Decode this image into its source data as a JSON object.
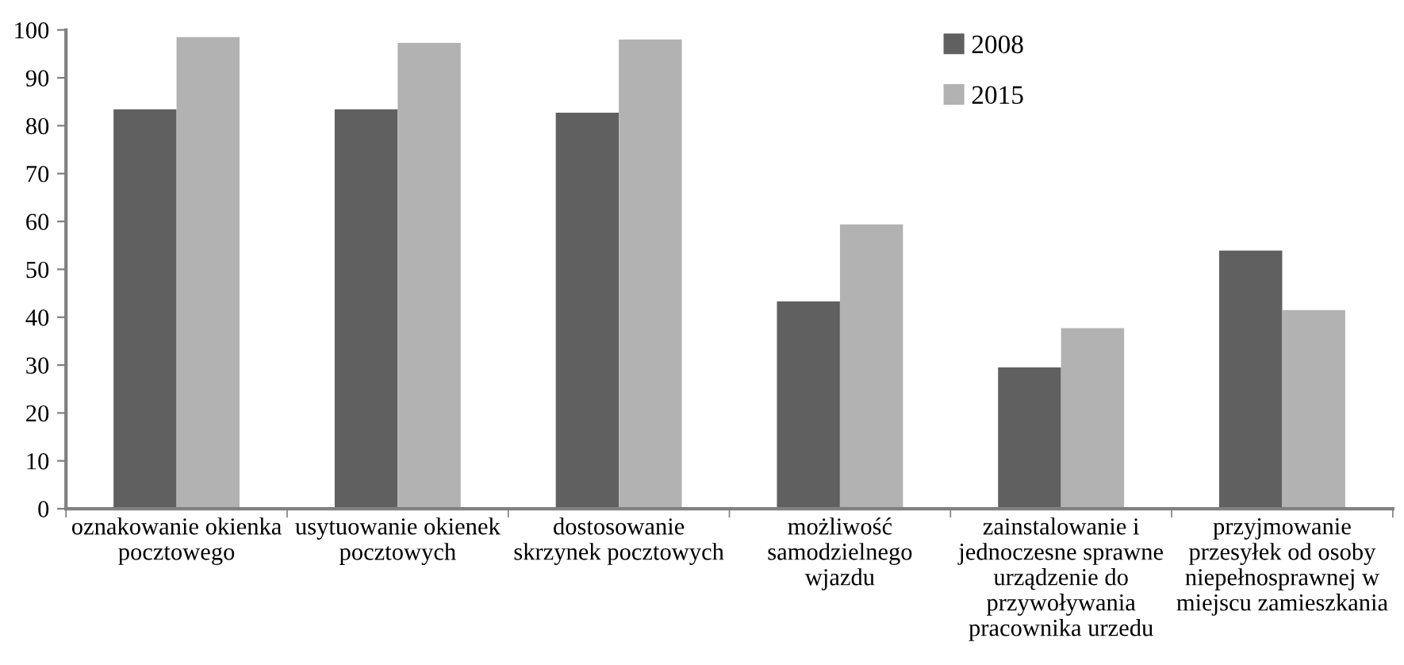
{
  "chart_data": {
    "type": "bar",
    "categories": [
      "oznakowanie okienka\npocztowego",
      "usytuowanie okienek\npocztowych",
      "dostosowanie\nskrzynek pocztowych",
      "możliwość\nsamodzielnego\nwjazdu",
      "zainstalowanie i\njednoczesne sprawne\nurządzenie do\nprzywoływania\npracownika urzedu",
      "przyjmowanie\nprzesyłek od osoby\nniepełnosprawnej w\nmiejscu zamieszkania"
    ],
    "series": [
      {
        "name": "2008",
        "color": "#606060",
        "values": [
          83.4,
          83.4,
          82.7,
          43.3,
          29.5,
          53.9
        ]
      },
      {
        "name": "2015",
        "color": "#b2b2b2",
        "values": [
          98.5,
          97.3,
          98.0,
          59.4,
          37.7,
          41.5
        ]
      }
    ],
    "ylim": [
      0,
      100
    ],
    "yticks": [
      0,
      10,
      20,
      30,
      40,
      50,
      60,
      70,
      80,
      90,
      100
    ],
    "grid": false,
    "legend": "top right"
  }
}
